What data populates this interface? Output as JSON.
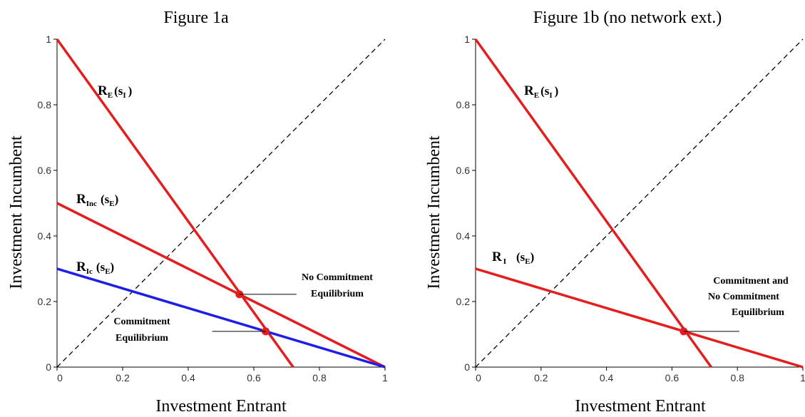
{
  "chart_data": [
    {
      "type": "line",
      "title": "Figure 1a",
      "xlabel": "Investment Entrant",
      "ylabel": "Investment Incumbent",
      "xlim": [
        0,
        1
      ],
      "ylim": [
        0,
        1
      ],
      "xticks": [
        "0",
        "0.2",
        "0.4",
        "0.6",
        "0.8",
        "1"
      ],
      "yticks": [
        "0",
        "0.2",
        "0.4",
        "0.6",
        "0.8",
        "1"
      ],
      "grid": false,
      "series": [
        {
          "x": [
            0,
            1
          ],
          "y": [
            0,
            1
          ],
          "style": "dashed",
          "color": "#000000"
        },
        {
          "x": [
            0,
            0.72
          ],
          "y": [
            1,
            0
          ],
          "color": "#e41e1e"
        },
        {
          "x": [
            0,
            1
          ],
          "y": [
            0.5,
            0
          ],
          "color": "#e41e1e"
        },
        {
          "x": [
            0,
            1
          ],
          "y": [
            0.3,
            0
          ],
          "color": "#1e1ee6"
        }
      ],
      "curve_labels": [
        {
          "main": "R",
          "sub": "E",
          "tail": "(s",
          "tailsub": "I",
          "close": ")"
        },
        {
          "main": "R",
          "sub": "Inc",
          "tail": "(s",
          "tailsub": "E",
          "close": ")"
        },
        {
          "main": "R",
          "sub": "Ic",
          "tail": "(s",
          "tailsub": "E",
          "close": ")"
        }
      ],
      "points": [
        {
          "x": 0.556,
          "y": 0.222,
          "color": "#e41e1e"
        },
        {
          "x": 0.636,
          "y": 0.109,
          "color": "#e41e1e"
        }
      ],
      "annotations": [
        {
          "lines": [
            "No Commitment",
            "Equilibrium"
          ]
        },
        {
          "lines": [
            "Commitment",
            "Equilibrium"
          ]
        }
      ]
    },
    {
      "type": "line",
      "title": "Figure 1b (no network ext.)",
      "xlabel": "Investment Entrant",
      "ylabel": "Investment Incumbent",
      "xlim": [
        0,
        1
      ],
      "ylim": [
        0,
        1
      ],
      "xticks": [
        "0",
        "0.2",
        "0.4",
        "0.6",
        "0.8",
        "1"
      ],
      "yticks": [
        "0",
        "0.2",
        "0.4",
        "0.6",
        "0.8",
        "1"
      ],
      "grid": false,
      "series": [
        {
          "x": [
            0,
            1
          ],
          "y": [
            0,
            1
          ],
          "style": "dashed",
          "color": "#000000"
        },
        {
          "x": [
            0,
            0.72
          ],
          "y": [
            1,
            0
          ],
          "color": "#e41e1e"
        },
        {
          "x": [
            0,
            1
          ],
          "y": [
            0.3,
            0
          ],
          "color": "#e41e1e"
        }
      ],
      "curve_labels": [
        {
          "main": "R",
          "sub": "E",
          "tail": "(s",
          "tailsub": "I",
          "close": ")"
        },
        {
          "main": "R",
          "sub": "I",
          "tail": "(s",
          "tailsub": "E",
          "close": ")"
        }
      ],
      "points": [
        {
          "x": 0.636,
          "y": 0.109,
          "color": "#e41e1e"
        }
      ],
      "annotations": [
        {
          "lines": [
            "Commitment and",
            "No Commitment",
            "Equilibrium"
          ]
        }
      ]
    }
  ]
}
